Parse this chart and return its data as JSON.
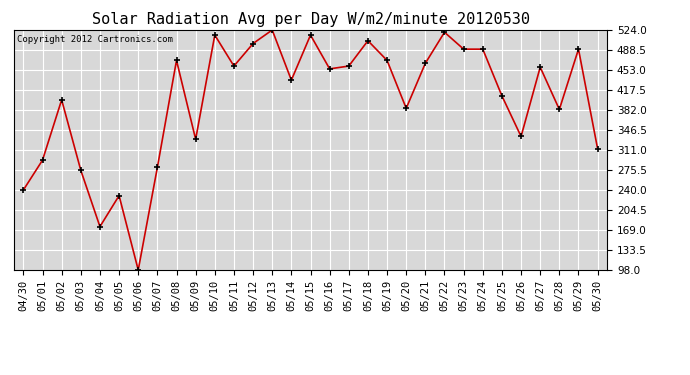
{
  "title": "Solar Radiation Avg per Day W/m2/minute 20120530",
  "copyright_text": "Copyright 2012 Cartronics.com",
  "dates": [
    "04/30",
    "05/01",
    "05/02",
    "05/03",
    "05/04",
    "05/05",
    "05/06",
    "05/07",
    "05/08",
    "05/09",
    "05/10",
    "05/11",
    "05/12",
    "05/13",
    "05/14",
    "05/15",
    "05/16",
    "05/17",
    "05/18",
    "05/19",
    "05/20",
    "05/21",
    "05/22",
    "05/23",
    "05/24",
    "05/25",
    "05/26",
    "05/27",
    "05/28",
    "05/29",
    "05/30"
  ],
  "values": [
    240,
    293,
    400,
    275,
    175,
    230,
    98,
    280,
    470,
    330,
    515,
    460,
    500,
    524,
    435,
    515,
    455,
    460,
    505,
    470,
    385,
    465,
    520,
    490,
    490,
    407,
    335,
    458,
    383,
    490,
    313
  ],
  "ylim_min": 98.0,
  "ylim_max": 524.0,
  "yticks": [
    98.0,
    133.5,
    169.0,
    204.5,
    240.0,
    275.5,
    311.0,
    346.5,
    382.0,
    417.5,
    453.0,
    488.5,
    524.0
  ],
  "line_color": "#cc0000",
  "marker": "+",
  "marker_color": "#000000",
  "background_color": "#ffffff",
  "plot_bg_color": "#d8d8d8",
  "grid_color": "#ffffff",
  "title_fontsize": 11,
  "tick_fontsize": 7.5,
  "copyright_fontsize": 6.5
}
